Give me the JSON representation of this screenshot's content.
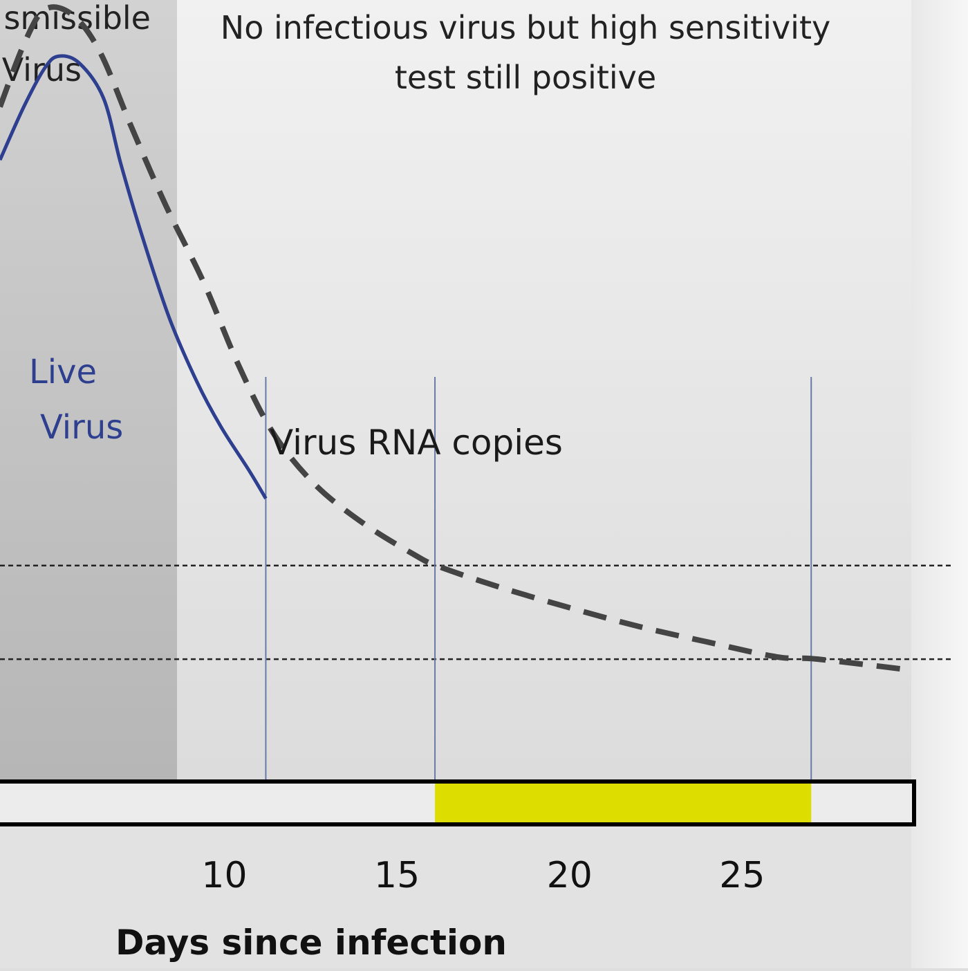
{
  "chart_data": {
    "type": "line",
    "title": "",
    "xlabel": "Days since infection",
    "ylabel": "",
    "xlim": [
      3.5,
      29.9
    ],
    "ylim": [
      0,
      100
    ],
    "x_ticks": [
      10,
      15,
      20,
      25
    ],
    "grid": false,
    "region_labels": {
      "transmissible": [
        "smissible",
        "Virus"
      ],
      "post_infectious": [
        "No infectious virus but high sensitivity",
        "test still positive"
      ]
    },
    "series": [
      {
        "name": "Live Virus",
        "label_lines": [
          "Live",
          "Virus"
        ],
        "style": "solid",
        "color": "#2e3f8f",
        "x": [
          3.5,
          4.2,
          4.8,
          5.2,
          5.8,
          6.5,
          7.0,
          7.6,
          8.4,
          9.2,
          9.9,
          10.7,
          11.2
        ],
        "y": [
          79.5,
          86.4,
          91.3,
          92.8,
          91.9,
          87.4,
          79.0,
          70.0,
          59.3,
          51.1,
          45.3,
          39.8,
          36.1
        ]
      },
      {
        "name": "Virus RNA copies",
        "style": "dashed",
        "color": "#444444",
        "x": [
          3.5,
          4.2,
          4.8,
          5.6,
          6.4,
          7.3,
          8.3,
          9.4,
          10.4,
          11.4,
          12.6,
          14.0,
          15.5,
          16.2,
          18.0,
          20.0,
          22.0,
          24.0,
          26.0,
          27.2,
          29.9
        ],
        "y": [
          86.3,
          94.4,
          98.8,
          98.1,
          93.3,
          83.8,
          73.7,
          63.8,
          53.3,
          44.6,
          38.0,
          33.0,
          28.9,
          27.4,
          24.7,
          22.1,
          19.7,
          17.7,
          15.8,
          15.5,
          14.1
        ]
      }
    ],
    "thresholds": [
      {
        "name": "upper detection threshold",
        "y": 27.5
      },
      {
        "name": "lower detection threshold",
        "y": 15.5
      }
    ],
    "markers_x": [
      11.2,
      16.1,
      27.0
    ],
    "highlight_band": {
      "from": 16.1,
      "to": 27.0,
      "color": "#dddd00"
    }
  }
}
